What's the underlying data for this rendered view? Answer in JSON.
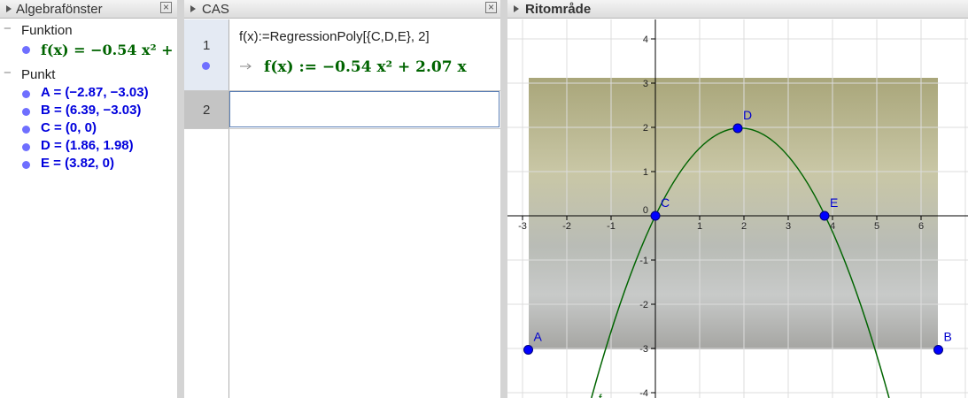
{
  "algebra": {
    "title": "Algebrafönster",
    "groups": [
      {
        "title": "Funktion",
        "items": [
          "f(x) = −0.54 x² +"
        ]
      },
      {
        "title": "Punkt",
        "items": [
          "A = (−2.87, −3.03)",
          "B = (6.39, −3.03)",
          "C = (0, 0)",
          "D = (1.86, 1.98)",
          "E = (3.82, 0)"
        ]
      }
    ]
  },
  "cas": {
    "title": "CAS",
    "rows": [
      {
        "number": "1",
        "input": "f(x):=RegressionPoly[{C,D,E}, 2]",
        "output": "f(x) := −0.54 x² + 2.07 x"
      },
      {
        "number": "2",
        "input": ""
      }
    ]
  },
  "graphics": {
    "title": "Ritområde",
    "xticks": [
      -3,
      -2,
      -1,
      1,
      2,
      3,
      4,
      5,
      6
    ],
    "yticks": [
      4,
      3,
      2,
      1,
      -1,
      -2,
      -3,
      -4
    ],
    "origin": 0,
    "points": [
      {
        "name": "A",
        "x": -2.87,
        "y": -3.03
      },
      {
        "name": "B",
        "x": 6.39,
        "y": -3.03
      },
      {
        "name": "C",
        "x": 0,
        "y": 0
      },
      {
        "name": "D",
        "x": 1.86,
        "y": 1.98
      },
      {
        "name": "E",
        "x": 3.82,
        "y": 0
      }
    ],
    "curve_label": "f"
  }
}
